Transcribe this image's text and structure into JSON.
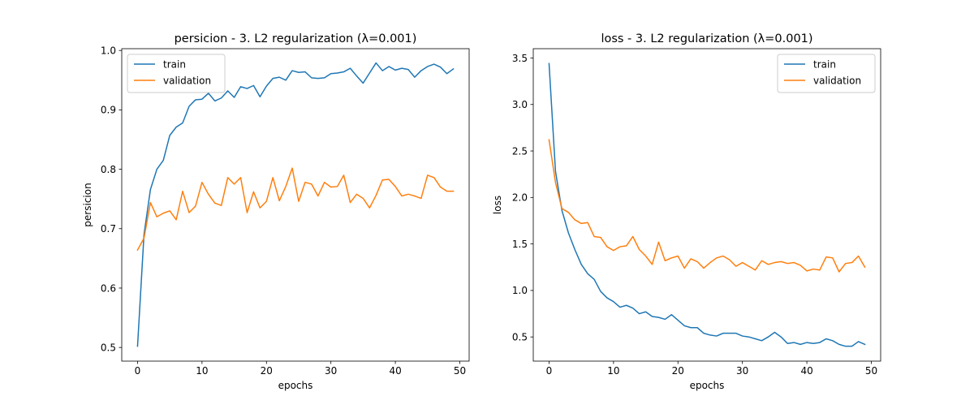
{
  "colors": {
    "train": "#1f77b4",
    "validation": "#ff7f0e"
  },
  "chart_data": [
    {
      "type": "line",
      "title": "persicion - 3. L2 regularization (λ=0.001)",
      "xlabel": "epochs",
      "ylabel": "persicion",
      "xlim": [
        -2.45,
        51.45
      ],
      "ylim": [
        0.477,
        1.003
      ],
      "xticks": [
        0,
        10,
        20,
        30,
        40,
        50
      ],
      "yticks": [
        0.5,
        0.6,
        0.7,
        0.8,
        0.9,
        1.0
      ],
      "xtick_labels": [
        "0",
        "10",
        "20",
        "30",
        "40",
        "50"
      ],
      "ytick_labels": [
        "0.5",
        "0.6",
        "0.7",
        "0.8",
        "0.9",
        "1.0"
      ],
      "grid": false,
      "legend": "upper-left",
      "x": [
        0,
        1,
        2,
        3,
        4,
        5,
        6,
        7,
        8,
        9,
        10,
        11,
        12,
        13,
        14,
        15,
        16,
        17,
        18,
        19,
        20,
        21,
        22,
        23,
        24,
        25,
        26,
        27,
        28,
        29,
        30,
        31,
        32,
        33,
        34,
        35,
        36,
        37,
        38,
        39,
        40,
        41,
        42,
        43,
        44,
        45,
        46,
        47,
        48,
        49
      ],
      "series": [
        {
          "name": "train",
          "values": [
            0.502,
            0.69,
            0.766,
            0.8,
            0.815,
            0.857,
            0.871,
            0.878,
            0.906,
            0.917,
            0.918,
            0.928,
            0.915,
            0.92,
            0.932,
            0.921,
            0.939,
            0.936,
            0.941,
            0.922,
            0.94,
            0.953,
            0.955,
            0.95,
            0.966,
            0.963,
            0.964,
            0.954,
            0.953,
            0.954,
            0.961,
            0.962,
            0.964,
            0.97,
            0.957,
            0.945,
            0.962,
            0.979,
            0.966,
            0.973,
            0.967,
            0.97,
            0.968,
            0.955,
            0.966,
            0.973,
            0.977,
            0.972,
            0.961,
            0.969
          ]
        },
        {
          "name": "validation",
          "values": [
            0.664,
            0.684,
            0.744,
            0.72,
            0.726,
            0.73,
            0.715,
            0.763,
            0.727,
            0.738,
            0.778,
            0.758,
            0.743,
            0.739,
            0.786,
            0.775,
            0.786,
            0.727,
            0.762,
            0.735,
            0.746,
            0.786,
            0.747,
            0.771,
            0.802,
            0.746,
            0.778,
            0.775,
            0.755,
            0.778,
            0.77,
            0.771,
            0.79,
            0.744,
            0.758,
            0.751,
            0.735,
            0.756,
            0.782,
            0.783,
            0.771,
            0.755,
            0.758,
            0.755,
            0.751,
            0.79,
            0.786,
            0.77,
            0.763,
            0.763
          ]
        }
      ]
    },
    {
      "type": "line",
      "title": "loss - 3. L2 regularization (λ=0.001)",
      "xlabel": "epochs",
      "ylabel": "loss",
      "xlim": [
        -2.45,
        51.45
      ],
      "ylim": [
        0.24,
        3.6
      ],
      "xticks": [
        0,
        10,
        20,
        30,
        40,
        50
      ],
      "yticks": [
        0.5,
        1.0,
        1.5,
        2.0,
        2.5,
        3.0,
        3.5
      ],
      "xtick_labels": [
        "0",
        "10",
        "20",
        "30",
        "40",
        "50"
      ],
      "ytick_labels": [
        "0.5",
        "1.0",
        "1.5",
        "2.0",
        "2.5",
        "3.0",
        "3.5"
      ],
      "grid": false,
      "legend": "upper-right",
      "x": [
        0,
        1,
        2,
        3,
        4,
        5,
        6,
        7,
        8,
        9,
        10,
        11,
        12,
        13,
        14,
        15,
        16,
        17,
        18,
        19,
        20,
        21,
        22,
        23,
        24,
        25,
        26,
        27,
        28,
        29,
        30,
        31,
        32,
        33,
        34,
        35,
        36,
        37,
        38,
        39,
        40,
        41,
        42,
        43,
        44,
        45,
        46,
        47,
        48,
        49
      ],
      "series": [
        {
          "name": "train",
          "values": [
            3.44,
            2.28,
            1.86,
            1.62,
            1.44,
            1.28,
            1.18,
            1.12,
            0.99,
            0.92,
            0.88,
            0.82,
            0.84,
            0.81,
            0.75,
            0.77,
            0.72,
            0.71,
            0.69,
            0.74,
            0.68,
            0.62,
            0.6,
            0.6,
            0.54,
            0.52,
            0.51,
            0.54,
            0.54,
            0.54,
            0.51,
            0.5,
            0.48,
            0.46,
            0.5,
            0.55,
            0.5,
            0.43,
            0.44,
            0.42,
            0.44,
            0.43,
            0.44,
            0.48,
            0.46,
            0.42,
            0.4,
            0.4,
            0.45,
            0.42
          ]
        },
        {
          "name": "validation",
          "values": [
            2.62,
            2.16,
            1.88,
            1.84,
            1.76,
            1.72,
            1.73,
            1.58,
            1.57,
            1.47,
            1.43,
            1.47,
            1.48,
            1.58,
            1.44,
            1.37,
            1.28,
            1.52,
            1.32,
            1.35,
            1.37,
            1.24,
            1.34,
            1.31,
            1.24,
            1.3,
            1.35,
            1.37,
            1.33,
            1.26,
            1.3,
            1.26,
            1.22,
            1.32,
            1.28,
            1.3,
            1.31,
            1.29,
            1.3,
            1.27,
            1.21,
            1.23,
            1.22,
            1.36,
            1.35,
            1.2,
            1.29,
            1.3,
            1.37,
            1.25
          ]
        }
      ]
    }
  ]
}
